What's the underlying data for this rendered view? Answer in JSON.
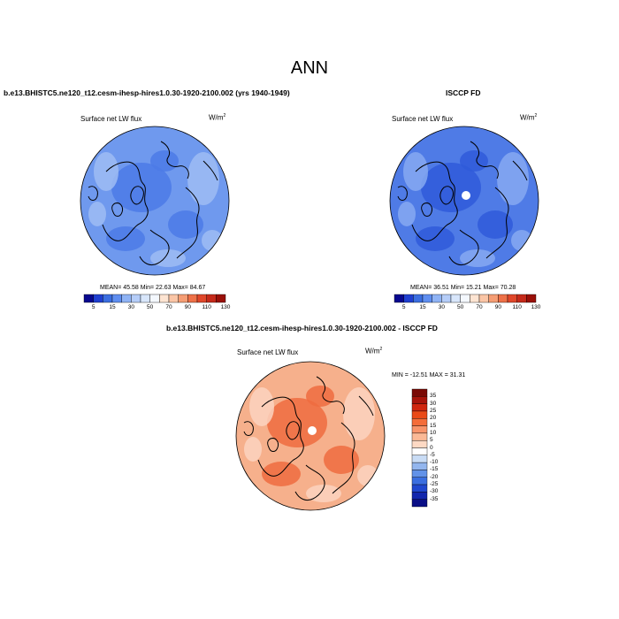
{
  "figure": {
    "title": "ANN"
  },
  "panel_model": {
    "case_title": "b.e13.BHISTC5.ne120_t12.cesm-ihesp-hires1.0.30-1920-2100.002 (yrs 1940-1949)",
    "variable": "Surface net LW flux",
    "units_base": "W/m",
    "units_exp": "2",
    "stats": "MEAN= 45.58  Min= 22.63  Max= 84.67"
  },
  "panel_obs": {
    "case_title": "ISCCP FD",
    "variable": "Surface net LW flux",
    "units_base": "W/m",
    "units_exp": "2",
    "stats": "MEAN= 36.51  Min= 15.21  Max= 70.28"
  },
  "panel_diff": {
    "case_title": "b.e13.BHISTC5.ne120_t12.cesm-ihesp-hires1.0.30-1920-2100.002 - ISCCP FD",
    "variable": "Surface net LW flux",
    "units_base": "W/m",
    "units_exp": "2",
    "stats": "MIN = -12.51 MAX =  31.31"
  },
  "colorbar_abs": {
    "labels": [
      "5",
      "15",
      "30",
      "50",
      "70",
      "90",
      "110",
      "130"
    ],
    "colors": [
      "#08088f",
      "#1f3fd0",
      "#3b6ee0",
      "#5f8ef0",
      "#8fb3f5",
      "#b5cdf8",
      "#d8e6fb",
      "#f4f8fe",
      "#fde4d2",
      "#fac5a6",
      "#f59d74",
      "#ee7148",
      "#e0472a",
      "#c52a1a",
      "#9a1008"
    ]
  },
  "colorbar_diff": {
    "labels": [
      "35",
      "30",
      "25",
      "20",
      "15",
      "10",
      "5",
      "0",
      "-5",
      "-10",
      "-15",
      "-20",
      "-25",
      "-30",
      "-35"
    ],
    "colors": [
      "#7a0a06",
      "#a8140b",
      "#d0260f",
      "#ea4a18",
      "#f46d3a",
      "#f8946a",
      "#fbb996",
      "#fdd9c4",
      "#ffffff",
      "#c9dcf5",
      "#93b6ee",
      "#6292e8",
      "#3a6ee0",
      "#1f47cf",
      "#1226ad",
      "#0a0f86"
    ]
  },
  "map_colors": {
    "model_base": "#6f99ee",
    "model_light": "#9fbcf3",
    "model_dark": "#4c7ae6",
    "obs_base": "#4f7be6",
    "obs_dark": "#2f5ad9",
    "obs_light": "#86a9f1",
    "diff_base": "#f6b08c",
    "diff_dark": "#ee6c3f",
    "diff_light": "#fbd4bf",
    "coast": "#000000"
  }
}
